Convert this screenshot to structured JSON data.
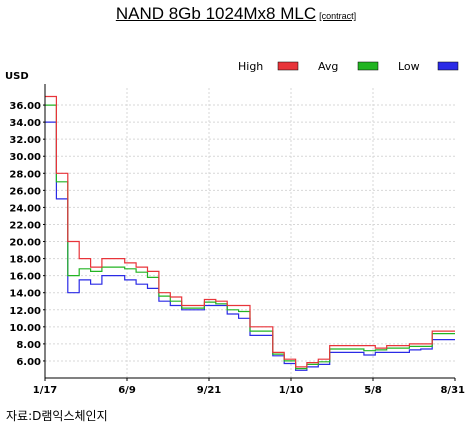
{
  "chart_data": {
    "type": "line",
    "title": "NAND 8Gb 1024Mx8 MLC",
    "subtitle": "[contract]",
    "ylabel": "USD",
    "xlabel": "",
    "ylim": [
      4.0,
      38.0
    ],
    "yticks": [
      "6.00",
      "8.00",
      "10.00",
      "12.00",
      "14.00",
      "16.00",
      "18.00",
      "20.00",
      "22.00",
      "24.00",
      "26.00",
      "28.00",
      "30.00",
      "32.00",
      "34.00",
      "36.00"
    ],
    "xticks": [
      "1/17",
      "6/9",
      "9/21",
      "1/10",
      "5/8",
      "8/31"
    ],
    "grid": true,
    "legend": "top-right",
    "line_style": "step",
    "x": [
      0,
      1,
      2,
      3,
      4,
      5,
      6,
      7,
      8,
      9,
      10,
      11,
      12,
      13,
      14,
      15,
      16,
      17,
      18,
      19,
      20,
      21,
      22,
      23,
      24,
      25,
      26,
      27,
      28,
      29,
      30,
      31,
      32,
      33,
      34,
      35
    ],
    "series": [
      {
        "name": "High",
        "color": "#e8343a",
        "values": [
          37.0,
          28.0,
          20.0,
          18.0,
          17.0,
          18.0,
          18.0,
          17.5,
          17.0,
          16.5,
          14.0,
          13.5,
          12.5,
          12.5,
          13.2,
          13.0,
          12.5,
          12.5,
          10.0,
          10.0,
          7.0,
          6.2,
          5.3,
          5.8,
          6.2,
          7.8,
          7.8,
          7.8,
          7.8,
          7.5,
          7.8,
          7.8,
          8.0,
          8.0,
          9.5,
          9.5
        ]
      },
      {
        "name": "Avg",
        "color": "#22b422",
        "values": [
          36.0,
          27.0,
          16.0,
          16.8,
          16.5,
          17.0,
          17.0,
          16.8,
          16.4,
          15.8,
          13.6,
          13.0,
          12.2,
          12.2,
          12.9,
          12.7,
          12.0,
          11.8,
          9.5,
          9.5,
          6.8,
          6.0,
          5.1,
          5.6,
          5.9,
          7.4,
          7.4,
          7.4,
          7.2,
          7.3,
          7.5,
          7.5,
          7.7,
          7.7,
          9.2,
          9.2
        ]
      },
      {
        "name": "Low",
        "color": "#2a2ae6",
        "values": [
          34.0,
          25.0,
          14.0,
          15.5,
          15.0,
          16.0,
          16.0,
          15.5,
          15.0,
          14.5,
          13.0,
          12.5,
          12.0,
          12.0,
          12.5,
          12.5,
          11.5,
          11.0,
          9.0,
          9.0,
          6.6,
          5.7,
          4.9,
          5.3,
          5.6,
          7.0,
          7.0,
          7.0,
          6.7,
          7.0,
          7.0,
          7.0,
          7.3,
          7.4,
          8.5,
          8.5
        ]
      }
    ]
  },
  "source": "자료:D램익스체인지"
}
